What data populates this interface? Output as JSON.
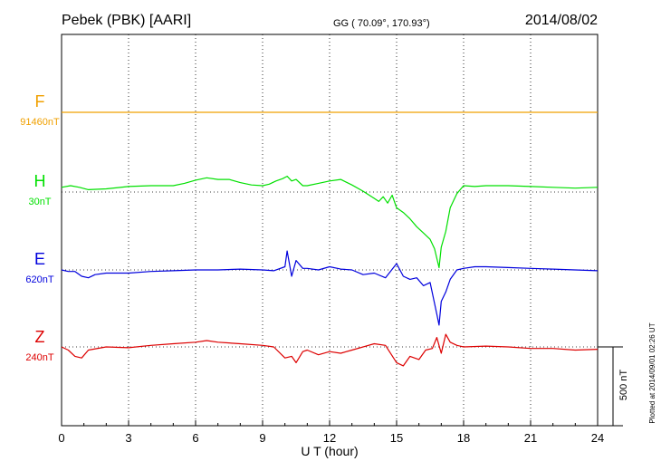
{
  "header": {
    "station": "Pebek (PBK)  [AARI]",
    "coords": "GG ( 70.09°, 170.93°)",
    "date": "2014/08/02"
  },
  "side_note": "Plotted at 2014/09/01 02:26 UT",
  "scale_label": "500 nT",
  "chart_data": {
    "type": "line",
    "xlabel": "U T (hour)",
    "xlim": [
      0,
      24
    ],
    "xticks": [
      0,
      3,
      6,
      9,
      12,
      15,
      18,
      21,
      24
    ],
    "grid": true,
    "y_unit": "nT",
    "scale_bar_nT": 500,
    "series": [
      {
        "name": "F",
        "baseline_label": "91460nT",
        "color": "#f0a000",
        "x": [
          0,
          24
        ],
        "y": [
          0,
          0
        ]
      },
      {
        "name": "H",
        "baseline_label": "30nT",
        "color": "#00e000",
        "x": [
          0,
          0.4,
          0.8,
          1.2,
          2,
          3,
          4,
          5,
          5.5,
          6,
          6.5,
          7,
          7.5,
          8,
          8.5,
          9,
          9.3,
          9.6,
          9.9,
          10.1,
          10.3,
          10.5,
          10.8,
          11,
          11.5,
          12,
          12.5,
          13,
          13.5,
          14,
          14.2,
          14.4,
          14.6,
          14.8,
          15,
          15.3,
          15.6,
          15.9,
          16.2,
          16.5,
          16.7,
          16.9,
          17,
          17.2,
          17.4,
          17.7,
          18,
          18.5,
          19,
          20,
          21,
          22,
          23,
          24
        ],
        "y": [
          30,
          40,
          30,
          15,
          20,
          35,
          40,
          40,
          55,
          75,
          90,
          80,
          80,
          60,
          45,
          40,
          50,
          70,
          85,
          100,
          70,
          80,
          40,
          40,
          55,
          70,
          80,
          45,
          5,
          -40,
          -60,
          -30,
          -70,
          -20,
          -100,
          -130,
          -170,
          -220,
          -260,
          -300,
          -360,
          -480,
          -350,
          -250,
          -100,
          -10,
          40,
          35,
          40,
          40,
          35,
          30,
          25,
          30
        ]
      },
      {
        "name": "E",
        "baseline_label": "620nT",
        "color": "#0000dd",
        "x": [
          0,
          0.3,
          0.6,
          0.9,
          1.2,
          1.5,
          2,
          3,
          4,
          5,
          6,
          7,
          8,
          9,
          9.5,
          10,
          10.1,
          10.3,
          10.5,
          10.8,
          11,
          11.5,
          12,
          12.5,
          13,
          13.5,
          14,
          14.5,
          15,
          15.3,
          15.6,
          15.9,
          16.2,
          16.5,
          16.8,
          16.9,
          17,
          17.2,
          17.4,
          17.7,
          18,
          18.5,
          19,
          20,
          21,
          22,
          23,
          24
        ],
        "y": [
          0,
          -10,
          -10,
          -40,
          -50,
          -30,
          -20,
          -20,
          -10,
          -5,
          0,
          0,
          5,
          0,
          -5,
          20,
          120,
          -40,
          60,
          10,
          10,
          0,
          20,
          5,
          0,
          -30,
          -20,
          -50,
          40,
          -40,
          -60,
          -50,
          -100,
          -80,
          -280,
          -350,
          -200,
          -140,
          -60,
          0,
          10,
          20,
          20,
          15,
          10,
          5,
          0,
          -5
        ]
      },
      {
        "name": "Z",
        "baseline_label": "240nT",
        "color": "#dd0000",
        "x": [
          0,
          0.3,
          0.6,
          0.9,
          1.2,
          2,
          3,
          4,
          5,
          6,
          6.5,
          7,
          8,
          9,
          9.5,
          10,
          10.3,
          10.5,
          10.8,
          11,
          11.5,
          12,
          12.5,
          13,
          14,
          14.5,
          15,
          15.3,
          15.6,
          16,
          16.3,
          16.6,
          16.8,
          17,
          17.2,
          17.4,
          17.7,
          18,
          19,
          20,
          21,
          22,
          23,
          24
        ],
        "y": [
          0,
          -20,
          -60,
          -70,
          -20,
          0,
          -5,
          10,
          20,
          30,
          40,
          30,
          20,
          10,
          0,
          -70,
          -60,
          -100,
          -30,
          -20,
          -50,
          -30,
          -40,
          -20,
          20,
          10,
          -100,
          -120,
          -60,
          -80,
          -20,
          -10,
          60,
          -40,
          80,
          30,
          10,
          0,
          5,
          0,
          -10,
          -10,
          -20,
          -15
        ]
      }
    ]
  }
}
